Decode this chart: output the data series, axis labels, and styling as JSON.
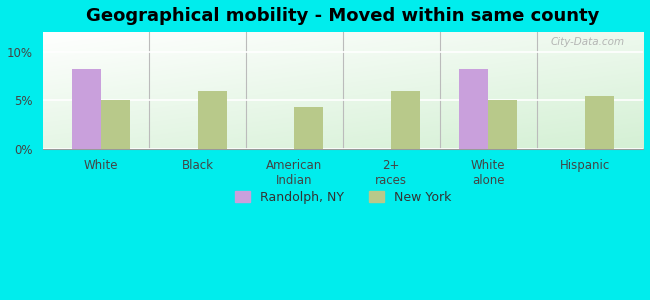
{
  "title": "Geographical mobility - Moved within same county",
  "categories": [
    "White",
    "Black",
    "American\nIndian",
    "2+\nraces",
    "White\nalone",
    "Hispanic"
  ],
  "randolph_values": [
    8.2,
    0,
    0,
    0,
    8.2,
    0
  ],
  "newyork_values": [
    5.0,
    6.0,
    4.3,
    6.0,
    5.0,
    5.4
  ],
  "randolph_color": "#c9a0dc",
  "newyork_color": "#b8c98a",
  "background_color": "#00eded",
  "ylim": [
    0,
    12
  ],
  "yticks": [
    0,
    5,
    10
  ],
  "ytick_labels": [
    "0%",
    "5%",
    "10%"
  ],
  "legend_labels": [
    "Randolph, NY",
    "New York"
  ],
  "bar_width": 0.3,
  "title_fontsize": 13,
  "tick_fontsize": 8.5,
  "legend_fontsize": 9
}
